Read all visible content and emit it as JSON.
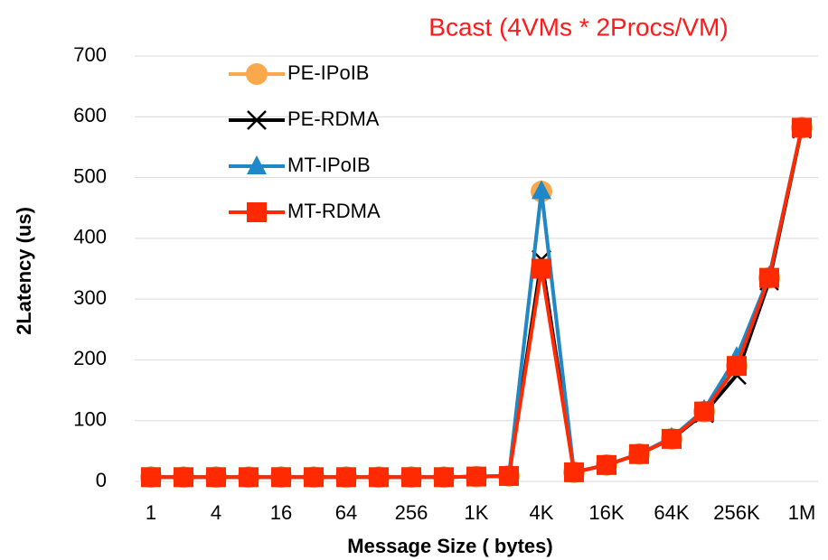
{
  "chart_data": {
    "type": "line",
    "title": "Bcast (4VMs * 2Procs/VM)",
    "xlabel": "Message Size ( bytes)",
    "ylabel": "2Latency (us)",
    "categories": [
      "1",
      null,
      "4",
      null,
      "16",
      null,
      "64",
      null,
      "256",
      null,
      "1K",
      null,
      "4K",
      null,
      "16K",
      null,
      "64K",
      null,
      "256K",
      null,
      "1M"
    ],
    "ylim": [
      0,
      700
    ],
    "yticks": [
      0,
      100,
      200,
      300,
      400,
      500,
      600,
      700
    ],
    "grid": true,
    "legend": "top-left",
    "series": [
      {
        "name": "PE-IPoIB",
        "color": "#f9a94b",
        "marker": "circle",
        "values": [
          7,
          7,
          7,
          7,
          7,
          7,
          7,
          7,
          7,
          7,
          8,
          9,
          477,
          15,
          27,
          45,
          70,
          115,
          190,
          335,
          582
        ]
      },
      {
        "name": "PE-RDMA",
        "color": "#000000",
        "marker": "x",
        "values": [
          7,
          7,
          7,
          7,
          7,
          7,
          7,
          7,
          7,
          7,
          8,
          9,
          365,
          15,
          27,
          45,
          70,
          112,
          175,
          330,
          580
        ]
      },
      {
        "name": "MT-IPoIB",
        "color": "#1e88c8",
        "marker": "triangle",
        "values": [
          7,
          7,
          7,
          7,
          7,
          7,
          7,
          7,
          7,
          7,
          8,
          9,
          478,
          15,
          27,
          45,
          72,
          118,
          205,
          338,
          582
        ]
      },
      {
        "name": "MT-RDMA",
        "color": "#ff2a00",
        "marker": "square",
        "values": [
          7,
          7,
          7,
          7,
          7,
          7,
          7,
          7,
          7,
          7,
          8,
          9,
          350,
          15,
          27,
          45,
          70,
          115,
          190,
          335,
          582
        ]
      }
    ]
  }
}
